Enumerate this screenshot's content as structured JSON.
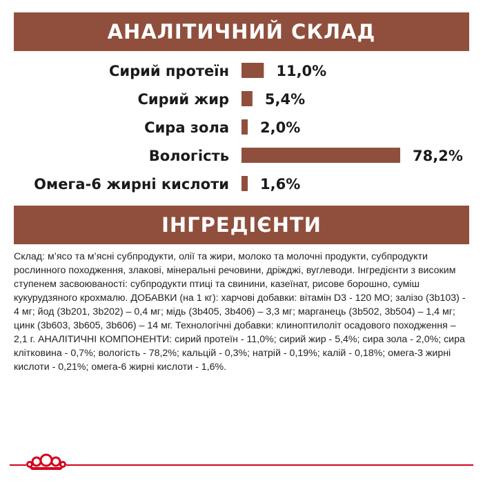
{
  "header1": "АНАЛІТИЧНИЙ СКЛАД",
  "header2": "ІНГРЕДІЄНТИ",
  "colors": {
    "band": "#8f4f3c",
    "bar": "#8f4f3c",
    "logo": "#d5001c"
  },
  "chart_data": {
    "type": "bar",
    "orientation": "horizontal",
    "categories": [
      "Сирий протеїн",
      "Сирий жир",
      "Сира зола",
      "Вологість",
      "Омега-6 жирні кислоти"
    ],
    "values": [
      11.0,
      5.4,
      2.0,
      78.2,
      1.6
    ],
    "value_labels": [
      "11,0%",
      "5,4%",
      "2,0%",
      "78,2%",
      "1,6%"
    ],
    "unit": "%",
    "title": "",
    "xlabel": "",
    "ylabel": "",
    "xlim": [
      0,
      78.2
    ],
    "grid": false,
    "legend": "none"
  },
  "ingredients_text": "Склад: м’ясо та м’ясні субпродукти, олії та жири, молоко та молочні продукти, субпродукти рослинного походження, злакові, мінеральні речовини, дріжджі, вуглеводи. Інгредієнти з високим ступенем засвоюваності: субпродукти птиці та свинини, казеїнат, рисове борошно, суміш кукурудзяного крохмалю.  ДОБАВКИ (на 1 кг): харчові добавки: вітамін D3 - 120 МО; залізо (3b103) - 4 мг; йод (3b201, 3b202) – 0,4 мг; мідь (3b405, 3b406) – 3,3 мг; марганець (3b502, 3b504) – 1,4 мг; цинк (3b603, 3b605, 3b606) – 14 мг. Технологічні добавки: клиноптилоліт осадового походження – 2,1 г. АНАЛІТИЧНІ КОМПОНЕНТИ: сирий протеїн - 11,0%; сирий жир - 5,4%; сира зола - 2,0%; сира клітковина - 0,7%; вологість - 78,2%; кальцій - 0,3%; натрій - 0,19%; калій - 0,18%; омега-3 жирні кислоти - 0,21%; омега-6 жирні кислоти - 1,6%.",
  "logo": {
    "icon": "royal-canin-crown-icon"
  }
}
